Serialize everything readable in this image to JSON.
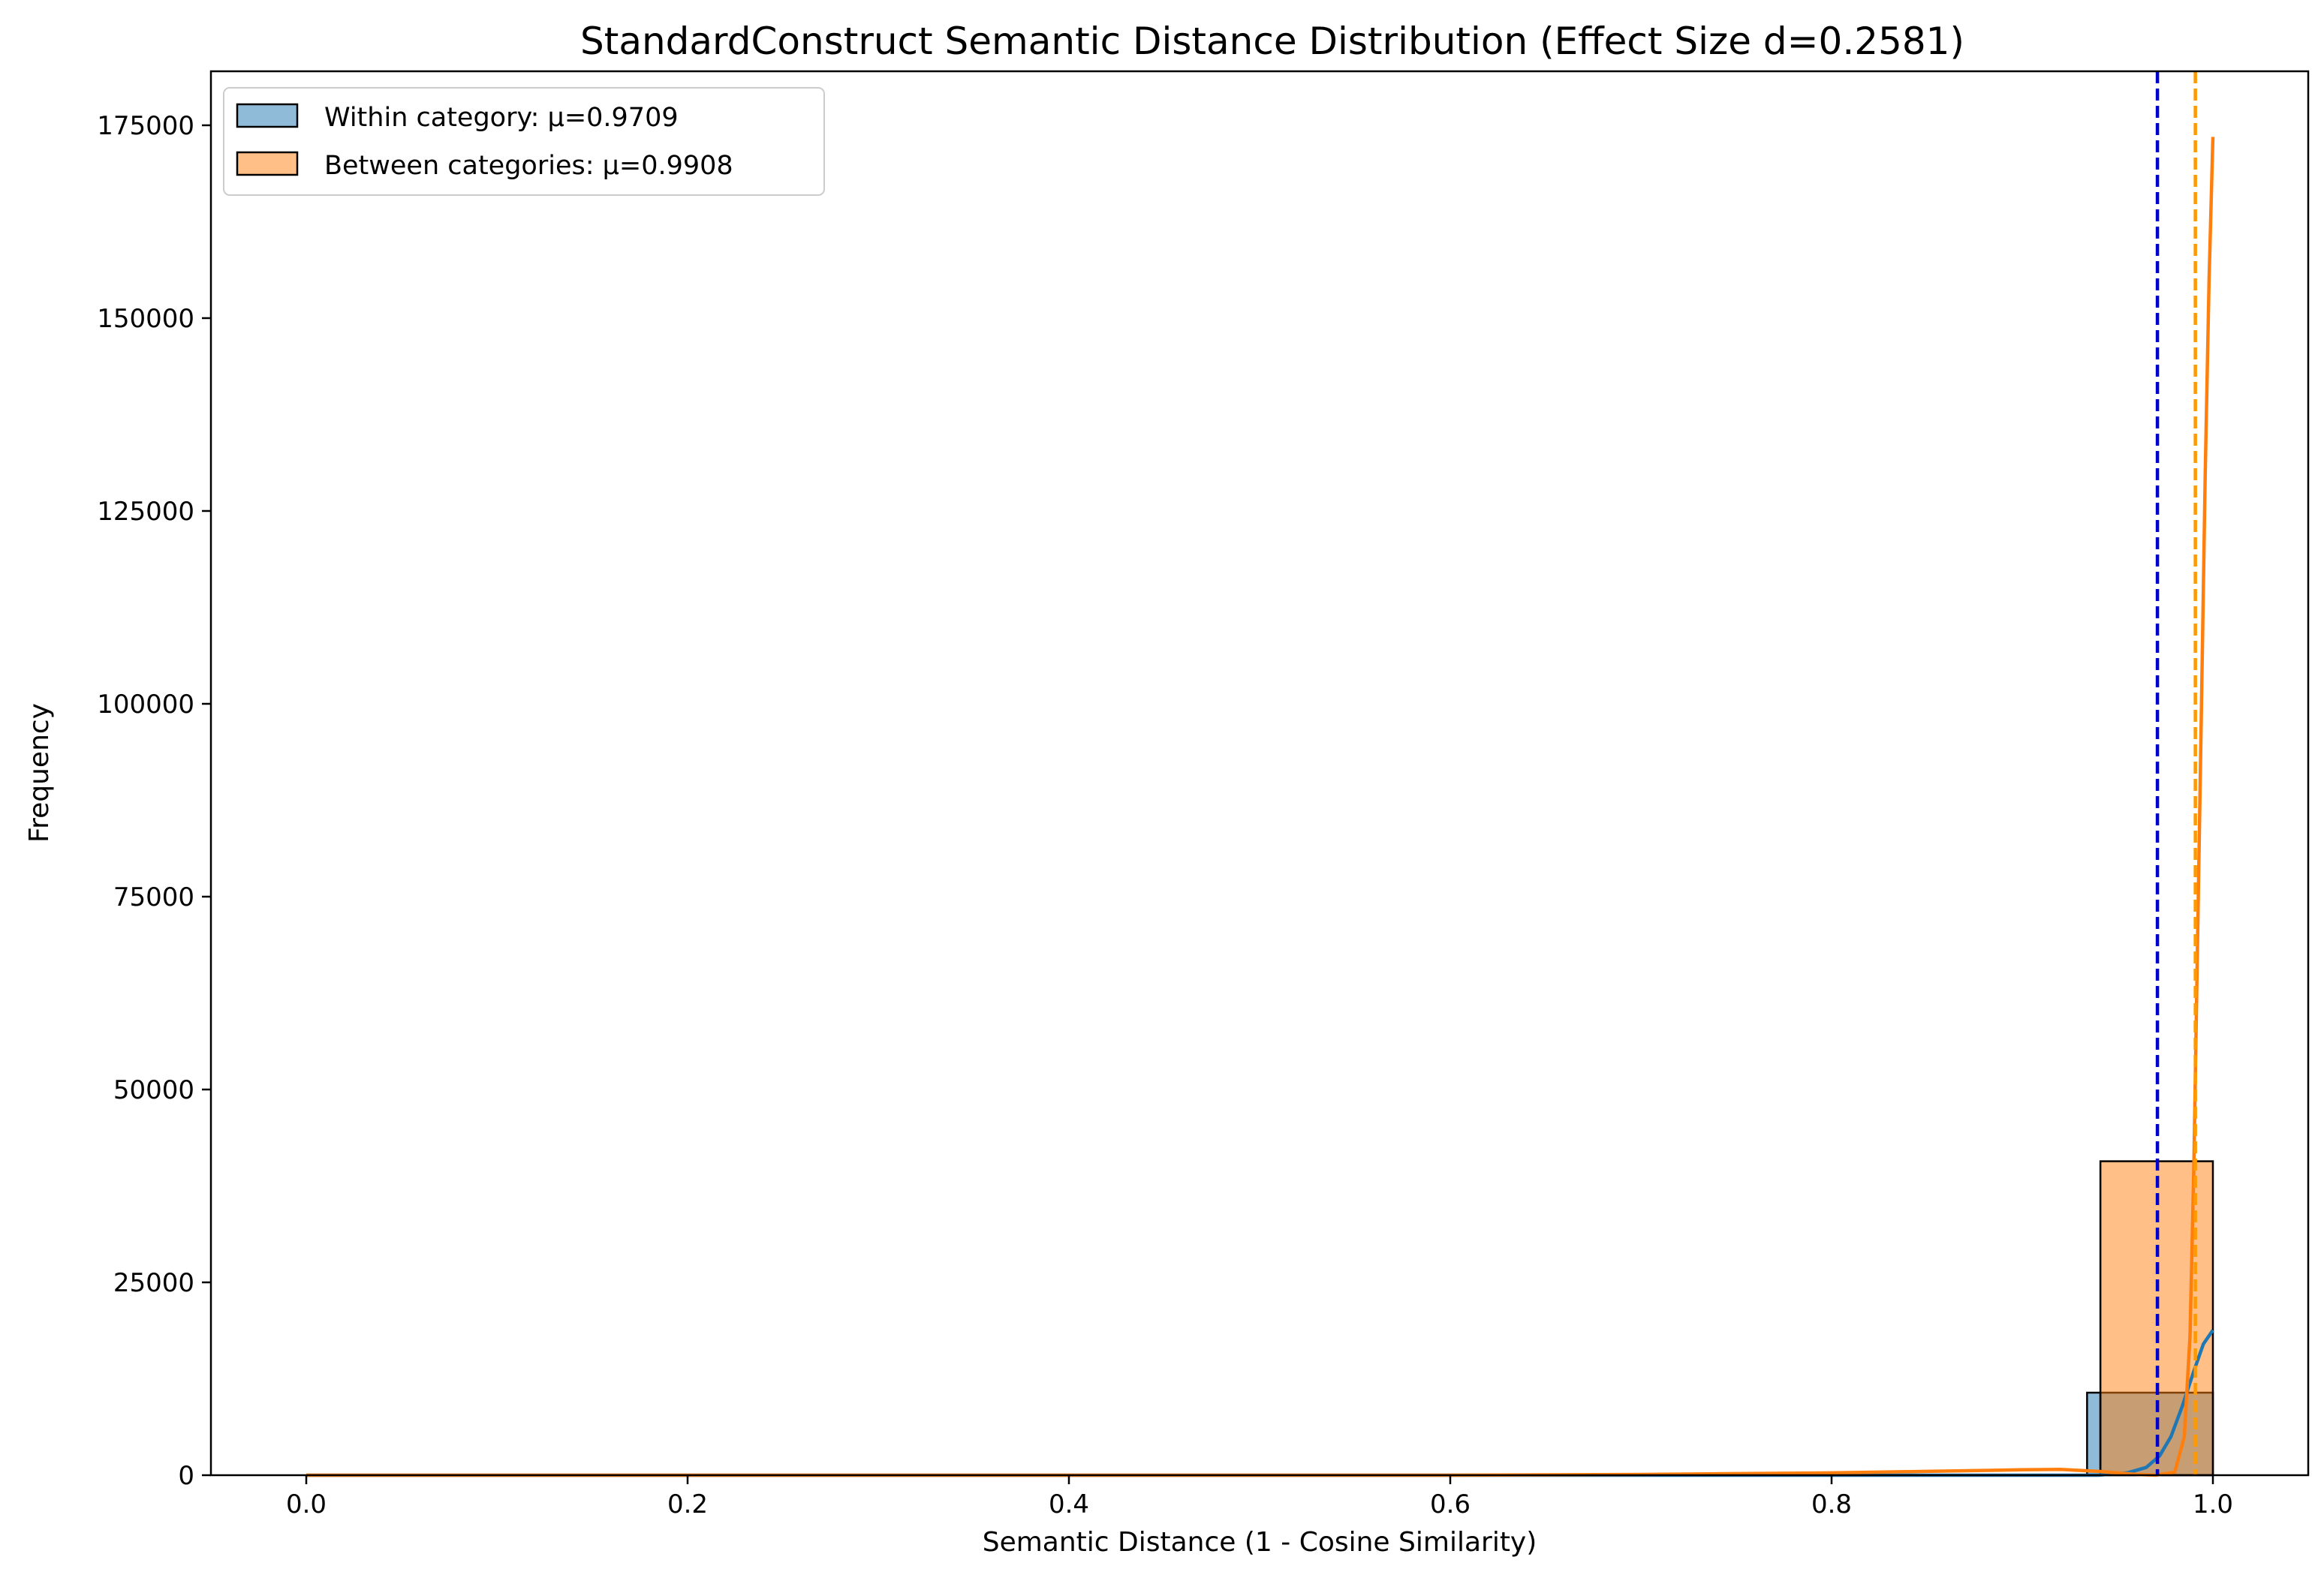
{
  "chart_data": {
    "type": "bar",
    "title": "StandardConstruct Semantic Distance Distribution (Effect Size d=0.2581)",
    "xlabel": "Semantic Distance (1 - Cosine Similarity)",
    "ylabel": "Frequency",
    "xlim": [
      -0.05,
      1.05
    ],
    "ylim": [
      0,
      182000
    ],
    "xticks": [
      0.0,
      0.2,
      0.4,
      0.6,
      0.8,
      1.0
    ],
    "xtick_labels": [
      "0.0",
      "0.2",
      "0.4",
      "0.6",
      "0.8",
      "1.0"
    ],
    "yticks": [
      0,
      25000,
      50000,
      75000,
      100000,
      125000,
      150000,
      175000
    ],
    "ytick_labels": [
      "0",
      "25000",
      "50000",
      "75000",
      "100000",
      "125000",
      "150000",
      "175000"
    ],
    "grid": false,
    "legend_position": "top-left",
    "series": [
      {
        "name": "Within category: μ=0.9709",
        "color": "#1f77b4",
        "fill": "#8fbbd9",
        "mean": 0.9709,
        "mean_line_color": "#0000cc",
        "bins": [
          {
            "x0": 0.934,
            "x1": 0.941,
            "count": 10700
          },
          {
            "x0": 0.941,
            "x1": 1.0,
            "count": 10700
          }
        ],
        "kde": [
          [
            0.0,
            0
          ],
          [
            0.2,
            0
          ],
          [
            0.4,
            0
          ],
          [
            0.6,
            0
          ],
          [
            0.8,
            0
          ],
          [
            0.94,
            0
          ],
          [
            0.955,
            300
          ],
          [
            0.965,
            1000
          ],
          [
            0.972,
            2500
          ],
          [
            0.978,
            5000
          ],
          [
            0.984,
            9000
          ],
          [
            0.99,
            13500
          ],
          [
            0.995,
            17000
          ],
          [
            1.0,
            18800
          ]
        ]
      },
      {
        "name": "Between categories: μ=0.9908",
        "color": "#ff7f0e",
        "fill": "#ffbb80",
        "mean": 0.9908,
        "mean_line_color": "#ff9900",
        "bins": [
          {
            "x0": 0.941,
            "x1": 1.0,
            "count": 40700
          }
        ],
        "kde": [
          [
            0.0,
            0
          ],
          [
            0.2,
            0
          ],
          [
            0.4,
            0
          ],
          [
            0.6,
            0
          ],
          [
            0.7,
            100
          ],
          [
            0.75,
            200
          ],
          [
            0.8,
            300
          ],
          [
            0.85,
            500
          ],
          [
            0.9,
            700
          ],
          [
            0.92,
            750
          ],
          [
            0.94,
            500
          ],
          [
            0.96,
            100
          ],
          [
            0.97,
            0
          ],
          [
            0.98,
            400
          ],
          [
            0.985,
            5000
          ],
          [
            0.988,
            18000
          ],
          [
            0.99,
            40000
          ],
          [
            0.992,
            70000
          ],
          [
            0.994,
            100000
          ],
          [
            0.996,
            130000
          ],
          [
            0.998,
            155000
          ],
          [
            1.0,
            173500
          ]
        ]
      }
    ]
  }
}
